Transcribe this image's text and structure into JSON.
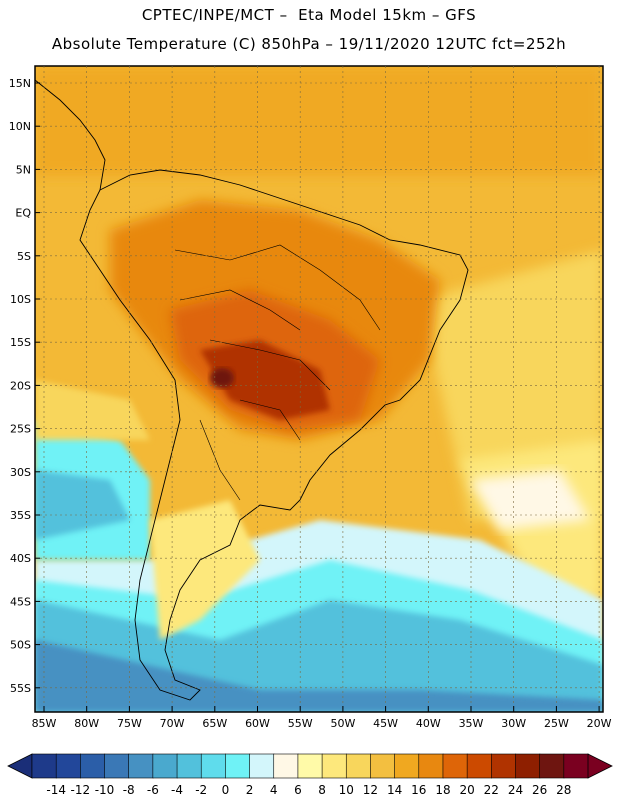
{
  "header": {
    "line1": "CPTEC/INPE/MCT –  Eta Model 15km – GFS",
    "line2": "Absolute Temperature (C) 850hPa – 19/11/2020 12UTC fct=252h"
  },
  "axes": {
    "lat_labels": [
      "15N",
      "10N",
      "5N",
      "EQ",
      "5S",
      "10S",
      "15S",
      "20S",
      "25S",
      "30S",
      "35S",
      "40S",
      "45S",
      "50S",
      "55S"
    ],
    "lon_labels": [
      "85W",
      "80W",
      "75W",
      "70W",
      "65W",
      "60W",
      "55W",
      "50W",
      "45W",
      "40W",
      "35W",
      "30W",
      "25W",
      "20W"
    ]
  },
  "colorbar": {
    "labels": [
      "-14",
      "-12",
      "-10",
      "-8",
      "-6",
      "-4",
      "-2",
      "0",
      "2",
      "4",
      "6",
      "8",
      "10",
      "12",
      "14",
      "16",
      "18",
      "20",
      "22",
      "24",
      "26",
      "28"
    ],
    "colors": [
      "#1e3a8a",
      "#22479a",
      "#2b5ea8",
      "#3a78b6",
      "#4691c2",
      "#4aa9ce",
      "#52c1dc",
      "#5fdcec",
      "#6ff2f6",
      "#d3f6fb",
      "#fff8e6",
      "#fffaa8",
      "#fde87c",
      "#f8d65c",
      "#f3bf40",
      "#f0a820",
      "#e88810",
      "#de6508",
      "#cc4a00",
      "#b03300",
      "#8e1f00",
      "#6e1510",
      "#7a0020"
    ],
    "low_end_color": "#1a2e78",
    "high_end_color": "#7a0020"
  },
  "map": {
    "ocean_color": "#f4c340",
    "coastline_color": "#000000"
  }
}
